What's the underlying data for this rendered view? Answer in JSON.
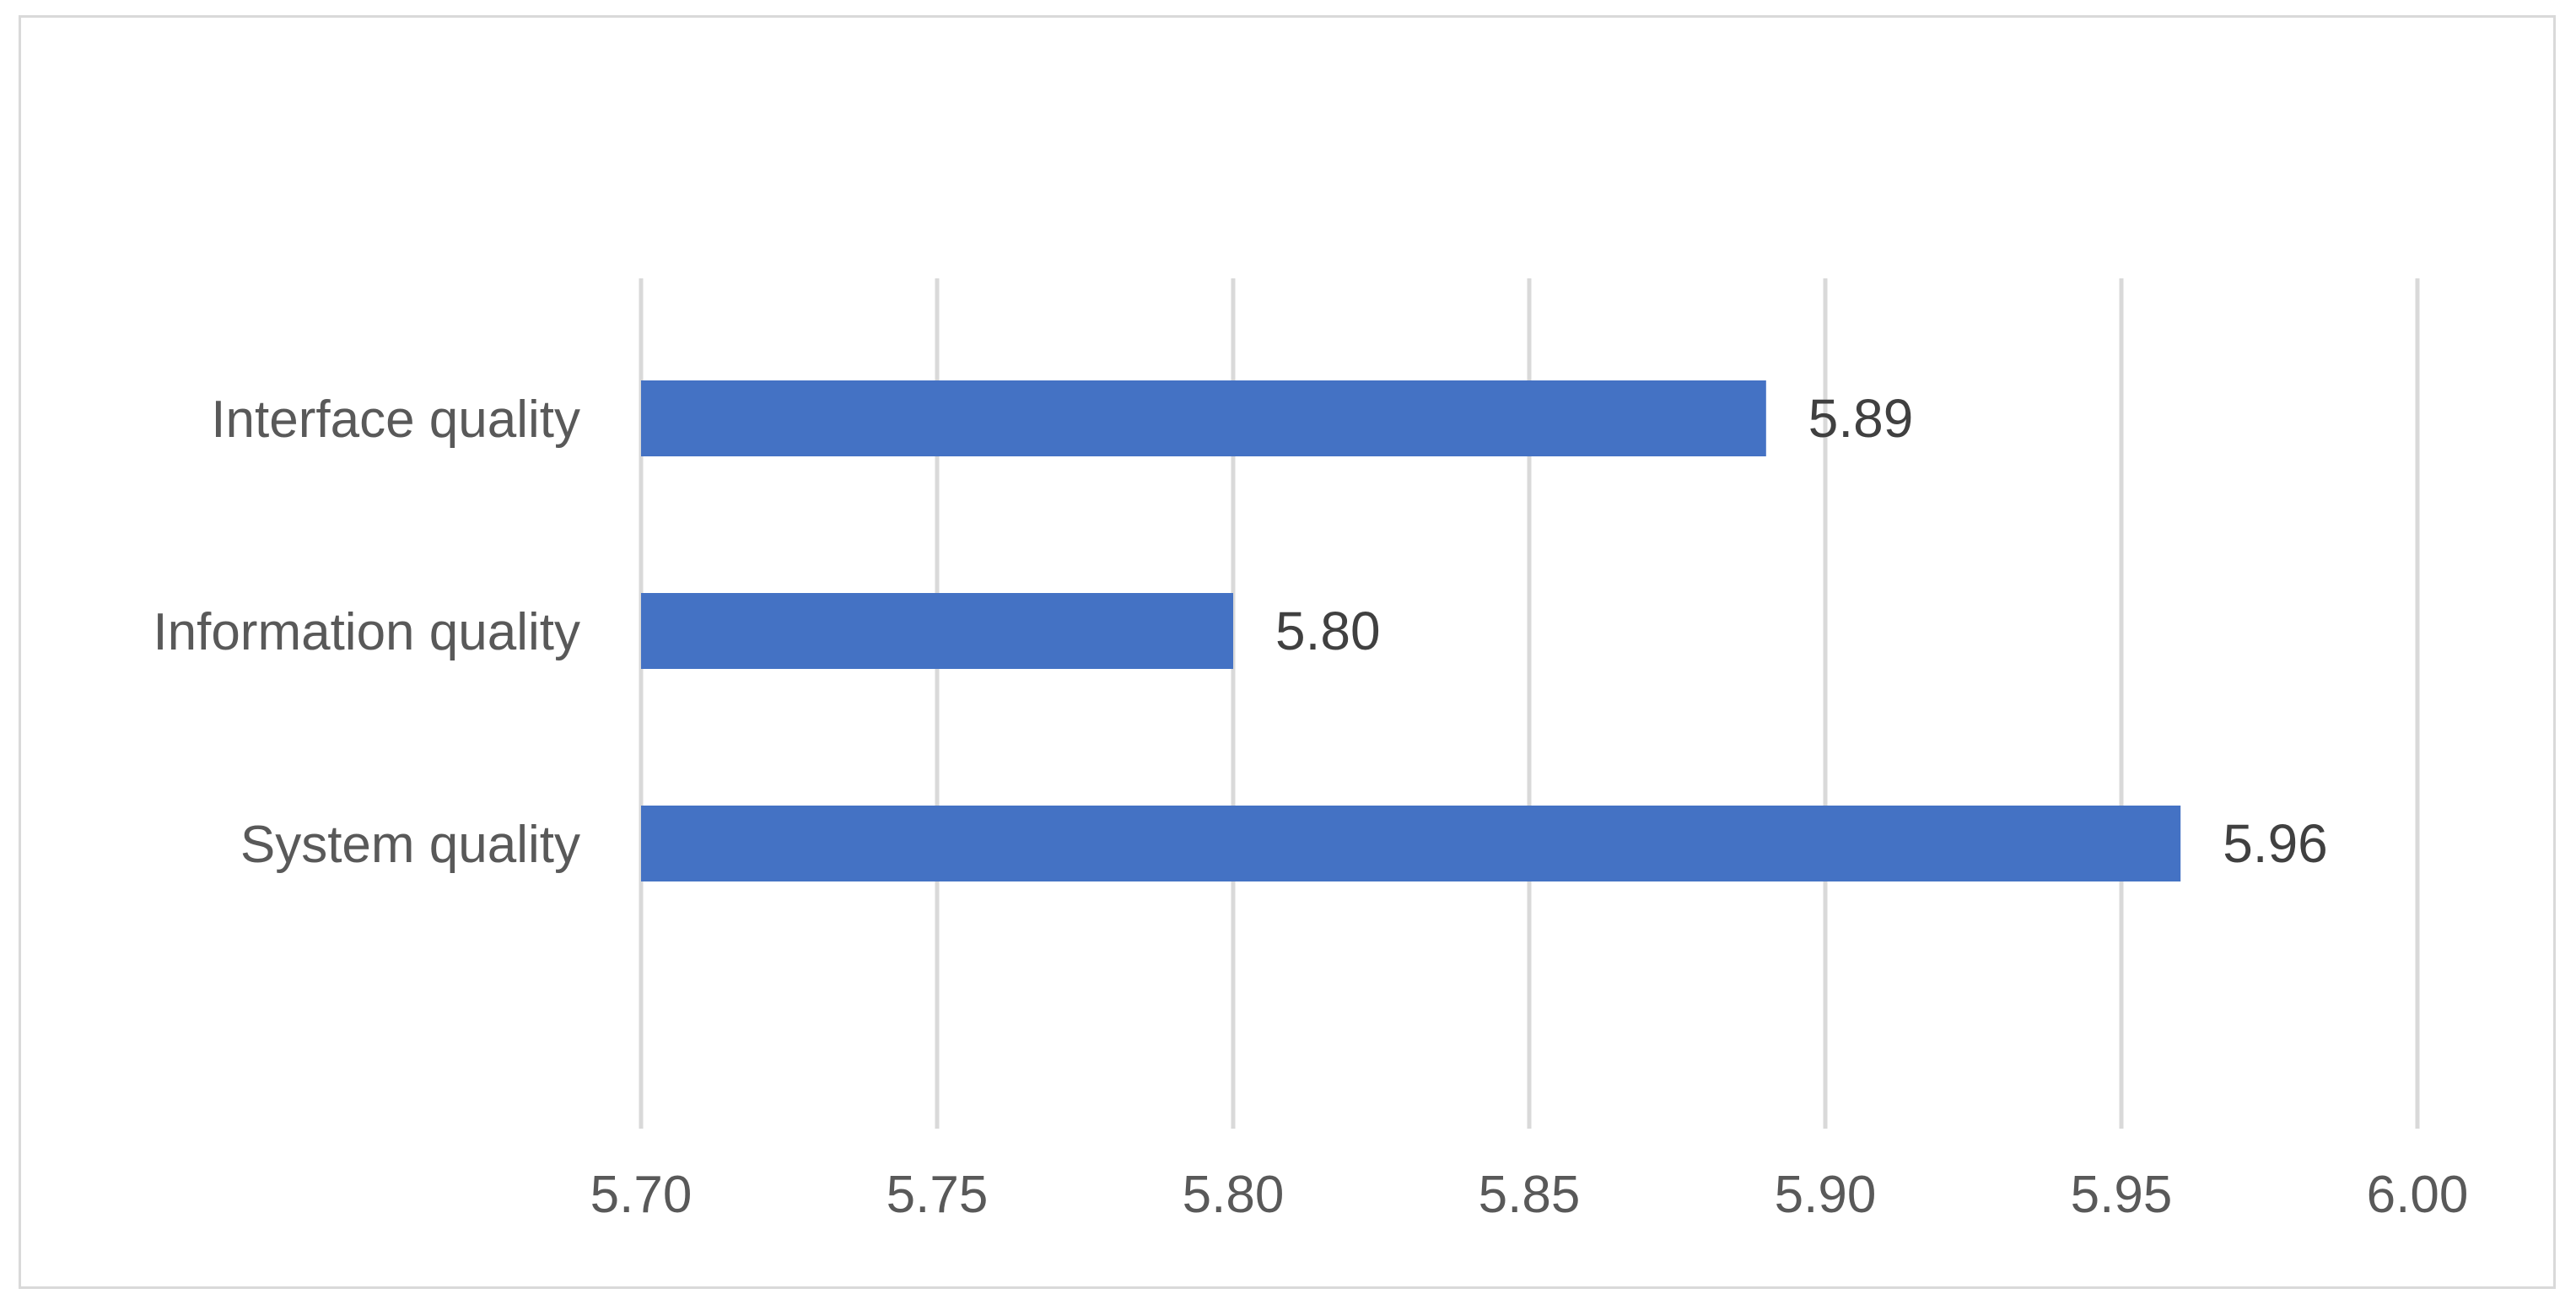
{
  "chart_data": {
    "type": "bar",
    "orientation": "horizontal",
    "title": "",
    "xlabel": "",
    "ylabel": "",
    "categories": [
      "Interface quality",
      "Information quality",
      "System quality"
    ],
    "values": [
      5.89,
      5.8,
      5.96
    ],
    "data_labels": [
      "5.89",
      "5.80",
      "5.96"
    ],
    "xlim": [
      5.7,
      6.0
    ],
    "x_ticks": [
      5.7,
      5.75,
      5.8,
      5.85,
      5.9,
      5.95,
      6.0
    ],
    "x_tick_labels": [
      "5.70",
      "5.75",
      "5.80",
      "5.85",
      "5.90",
      "5.95",
      "6.00"
    ],
    "grid": "vertical",
    "legend": "none",
    "colors": {
      "bar": "#4472c4",
      "grid": "#d9d9d9",
      "tick_text": "#595959",
      "data_label_text": "#404040",
      "border": "#d9d9d9"
    }
  }
}
